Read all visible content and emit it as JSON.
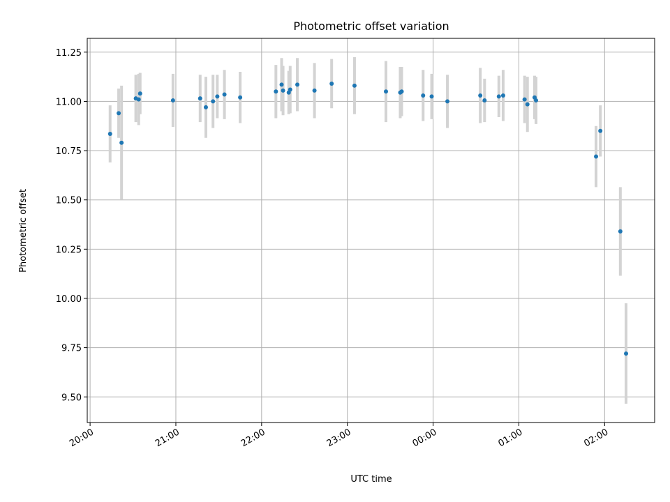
{
  "chart_data": {
    "type": "scatter",
    "title": "Photometric offset variation",
    "xlabel": "UTC time",
    "ylabel": "Photometric offset",
    "x_is_time": true,
    "x_ticks": [
      {
        "value": "20:00",
        "label": "20:00"
      },
      {
        "value": "21:00",
        "label": "21:00"
      },
      {
        "value": "22:00",
        "label": "22:00"
      },
      {
        "value": "23:00",
        "label": "23:00"
      },
      {
        "value": "24:00",
        "label": "00:00"
      },
      {
        "value": "25:00",
        "label": "01:00"
      },
      {
        "value": "26:00",
        "label": "02:00"
      }
    ],
    "xlim": [
      "19:58",
      "26:35"
    ],
    "y_ticks": [
      "9.50",
      "9.75",
      "10.00",
      "10.25",
      "10.50",
      "10.75",
      "11.00",
      "11.25"
    ],
    "ylim": [
      9.37,
      11.32
    ],
    "grid": true,
    "marker_color": "#1f77b4",
    "errorbar_color": "#d3d3d3",
    "points": [
      {
        "x": "20:14",
        "y": 10.835,
        "err": 0.145
      },
      {
        "x": "20:20",
        "y": 10.94,
        "err": 0.125
      },
      {
        "x": "20:22",
        "y": 10.79,
        "err": 0.29
      },
      {
        "x": "20:32",
        "y": 11.015,
        "err": 0.12
      },
      {
        "x": "20:34",
        "y": 11.01,
        "err": 0.13
      },
      {
        "x": "20:35",
        "y": 11.04,
        "err": 0.105
      },
      {
        "x": "20:58",
        "y": 11.005,
        "err": 0.135
      },
      {
        "x": "21:17",
        "y": 11.015,
        "err": 0.12
      },
      {
        "x": "21:21",
        "y": 10.97,
        "err": 0.155
      },
      {
        "x": "21:26",
        "y": 11.0,
        "err": 0.135
      },
      {
        "x": "21:29",
        "y": 11.025,
        "err": 0.11
      },
      {
        "x": "21:34",
        "y": 11.035,
        "err": 0.125
      },
      {
        "x": "21:45",
        "y": 11.02,
        "err": 0.13
      },
      {
        "x": "22:10",
        "y": 11.05,
        "err": 0.135
      },
      {
        "x": "22:14",
        "y": 11.085,
        "err": 0.135
      },
      {
        "x": "22:15",
        "y": 11.055,
        "err": 0.125
      },
      {
        "x": "22:19",
        "y": 11.045,
        "err": 0.11
      },
      {
        "x": "22:20",
        "y": 11.06,
        "err": 0.12
      },
      {
        "x": "22:25",
        "y": 11.085,
        "err": 0.135
      },
      {
        "x": "22:37",
        "y": 11.055,
        "err": 0.14
      },
      {
        "x": "22:49",
        "y": 11.09,
        "err": 0.125
      },
      {
        "x": "23:05",
        "y": 11.08,
        "err": 0.145
      },
      {
        "x": "23:27",
        "y": 11.05,
        "err": 0.155
      },
      {
        "x": "23:37",
        "y": 11.045,
        "err": 0.13
      },
      {
        "x": "23:38",
        "y": 11.05,
        "err": 0.125
      },
      {
        "x": "23:53",
        "y": 11.03,
        "err": 0.13
      },
      {
        "x": "23:59",
        "y": 11.025,
        "err": 0.115
      },
      {
        "x": "24:10",
        "y": 11.0,
        "err": 0.135
      },
      {
        "x": "24:33",
        "y": 11.03,
        "err": 0.14
      },
      {
        "x": "24:36",
        "y": 11.005,
        "err": 0.11
      },
      {
        "x": "24:46",
        "y": 11.025,
        "err": 0.105
      },
      {
        "x": "24:49",
        "y": 11.03,
        "err": 0.13
      },
      {
        "x": "25:04",
        "y": 11.01,
        "err": 0.12
      },
      {
        "x": "25:06",
        "y": 10.985,
        "err": 0.14
      },
      {
        "x": "25:11",
        "y": 11.02,
        "err": 0.11
      },
      {
        "x": "25:12",
        "y": 11.005,
        "err": 0.12
      },
      {
        "x": "25:54",
        "y": 10.72,
        "err": 0.155
      },
      {
        "x": "25:57",
        "y": 10.85,
        "err": 0.13
      },
      {
        "x": "26:11",
        "y": 10.34,
        "err": 0.225
      },
      {
        "x": "26:15",
        "y": 9.72,
        "err": 0.255
      }
    ]
  }
}
